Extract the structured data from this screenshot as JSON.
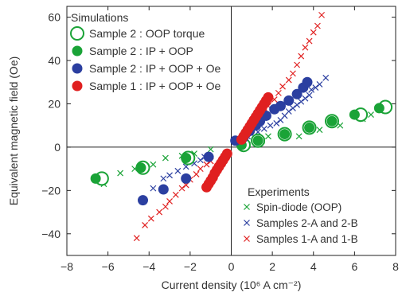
{
  "chart_data": {
    "type": "scatter",
    "title": "",
    "xlabel": "Current density (10⁶ A cm⁻²)",
    "ylabel": "Equivalent magnetic field (Oe)",
    "xlim": [
      -8,
      8
    ],
    "ylim": [
      -50,
      65
    ],
    "x_ticks": [
      -8,
      -6,
      -4,
      -2,
      0,
      2,
      4,
      6,
      8
    ],
    "y_ticks": [
      -40,
      -20,
      0,
      20,
      40,
      60
    ],
    "x_tick_labels": [
      "−8",
      "−6",
      "−4",
      "−2",
      "0",
      "2",
      "4",
      "6",
      "8"
    ],
    "y_tick_labels": [
      "−40",
      "−20",
      "0",
      "20",
      "40",
      "60"
    ],
    "grid": false,
    "zero_lines": true,
    "legend_groups": [
      {
        "title": "Simulations",
        "position": "top-left",
        "series": [
          "sim_oop",
          "sim_ip_oop",
          "sim_ip_oop_oe_s2",
          "sim_ip_oop_oe_s1"
        ]
      },
      {
        "title": "Experiments",
        "position": "bottom-right",
        "series": [
          "exp_spin_diode",
          "exp_2ab",
          "exp_1ab"
        ]
      }
    ],
    "series": [
      {
        "id": "sim_oop",
        "name": "Sample 2 : OOP torque",
        "marker": "open-circle",
        "color": "#1aa337",
        "points": [
          [
            -6.3,
            -14.5
          ],
          [
            -4.3,
            -9.5
          ],
          [
            -2.1,
            -5.0
          ],
          [
            0.6,
            1.0
          ],
          [
            1.3,
            3.0
          ],
          [
            2.6,
            6.0
          ],
          [
            3.8,
            9.0
          ],
          [
            4.9,
            12.0
          ],
          [
            6.3,
            15.0
          ],
          [
            7.5,
            18.5
          ]
        ]
      },
      {
        "id": "sim_ip_oop",
        "name": "Sample 2 : IP + OOP",
        "marker": "filled-circle",
        "color": "#1aa337",
        "points": [
          [
            -6.6,
            -14.5
          ],
          [
            -4.4,
            -9.5
          ],
          [
            -2.2,
            -5.0
          ],
          [
            0.5,
            1.0
          ],
          [
            1.3,
            3.0
          ],
          [
            2.6,
            6.0
          ],
          [
            3.8,
            9.0
          ],
          [
            4.9,
            12.0
          ],
          [
            6.0,
            15.0
          ],
          [
            7.2,
            18.0
          ]
        ]
      },
      {
        "id": "sim_ip_oop_oe_s2",
        "name": "Sample 2 : IP + OOP + Oe",
        "marker": "filled-circle",
        "color": "#2b3fa0",
        "points": [
          [
            -4.3,
            -24.5
          ],
          [
            -3.3,
            -19.5
          ],
          [
            -2.2,
            -14.5
          ],
          [
            -1.1,
            -4.5
          ],
          [
            0.2,
            3.0
          ],
          [
            0.6,
            4.5
          ],
          [
            0.9,
            7.5
          ],
          [
            1.2,
            10.0
          ],
          [
            1.4,
            12.0
          ],
          [
            1.7,
            14.5
          ],
          [
            2.1,
            17.5
          ],
          [
            2.4,
            19.0
          ],
          [
            2.8,
            21.5
          ],
          [
            3.2,
            24.5
          ],
          [
            3.5,
            27.5
          ],
          [
            3.7,
            30.0
          ]
        ]
      },
      {
        "id": "sim_ip_oop_oe_s1",
        "name": "Sample 1 : IP + OOP + Oe",
        "marker": "filled-circle",
        "color": "#e02020",
        "points": [
          [
            -1.2,
            -18.5
          ],
          [
            -1.1,
            -17.0
          ],
          [
            -1.0,
            -15.5
          ],
          [
            -0.9,
            -14.0
          ],
          [
            -0.8,
            -12.0
          ],
          [
            -0.7,
            -10.5
          ],
          [
            -0.6,
            -9.0
          ],
          [
            -0.5,
            -7.5
          ],
          [
            -0.4,
            -6.0
          ],
          [
            -0.3,
            -4.5
          ],
          [
            -0.2,
            -3.0
          ],
          [
            0.5,
            3.5
          ],
          [
            0.6,
            5.0
          ],
          [
            0.7,
            6.5
          ],
          [
            0.8,
            8.0
          ],
          [
            0.9,
            9.5
          ],
          [
            1.0,
            11.0
          ],
          [
            1.1,
            12.5
          ],
          [
            1.2,
            14.0
          ],
          [
            1.3,
            15.5
          ],
          [
            1.4,
            17.0
          ],
          [
            1.5,
            18.5
          ],
          [
            1.6,
            20.0
          ],
          [
            1.7,
            21.5
          ],
          [
            1.8,
            23.0
          ]
        ]
      },
      {
        "id": "exp_spin_diode",
        "name": "Spin-diode  (OOP)",
        "marker": "x",
        "color": "#1aa337",
        "points": [
          [
            -6.2,
            -17.0
          ],
          [
            -5.4,
            -12.0
          ],
          [
            -4.7,
            -10.0
          ],
          [
            -3.8,
            -8.0
          ],
          [
            -3.2,
            -5.0
          ],
          [
            -2.4,
            -4.0
          ],
          [
            -1.8,
            -3.0
          ],
          [
            -1.0,
            -1.0
          ],
          [
            0.8,
            1.0
          ],
          [
            1.5,
            3.0
          ],
          [
            1.8,
            5.0
          ],
          [
            3.3,
            5.0
          ],
          [
            4.3,
            8.0
          ],
          [
            5.3,
            10.0
          ],
          [
            6.4,
            13.0
          ],
          [
            6.8,
            15.0
          ]
        ]
      },
      {
        "id": "exp_2ab",
        "name": "Samples 2-A and 2-B",
        "marker": "x",
        "color": "#2b3fa0",
        "points": [
          [
            -3.8,
            -19.0
          ],
          [
            -3.3,
            -14.5
          ],
          [
            -3.0,
            -13.0
          ],
          [
            -2.6,
            -11.0
          ],
          [
            -2.2,
            -9.0
          ],
          [
            -1.8,
            -7.5
          ],
          [
            -1.5,
            -6.0
          ],
          [
            -1.3,
            -4.5
          ],
          [
            0.3,
            2.5
          ],
          [
            0.6,
            3.5
          ],
          [
            0.8,
            5.0
          ],
          [
            1.0,
            6.0
          ],
          [
            1.3,
            7.0
          ],
          [
            1.6,
            8.5
          ],
          [
            1.9,
            10.0
          ],
          [
            2.2,
            11.0
          ],
          [
            2.4,
            12.5
          ],
          [
            2.6,
            14.5
          ],
          [
            2.8,
            16.5
          ],
          [
            3.0,
            18.0
          ],
          [
            3.2,
            19.5
          ],
          [
            3.4,
            21.0
          ],
          [
            3.6,
            22.5
          ],
          [
            3.8,
            24.0
          ],
          [
            3.9,
            26.5
          ],
          [
            4.1,
            27.5
          ],
          [
            4.3,
            29.0
          ],
          [
            4.6,
            32.0
          ]
        ]
      },
      {
        "id": "exp_1ab",
        "name": "Samples 1-A and 1-B",
        "marker": "x",
        "color": "#e02020",
        "points": [
          [
            -4.6,
            -42.0
          ],
          [
            -4.2,
            -36.0
          ],
          [
            -3.9,
            -33.0
          ],
          [
            -3.5,
            -30.0
          ],
          [
            -3.2,
            -27.5
          ],
          [
            -3.0,
            -25.0
          ],
          [
            -2.7,
            -22.0
          ],
          [
            -2.4,
            -19.0
          ],
          [
            -2.2,
            -17.5
          ],
          [
            -2.0,
            -15.0
          ],
          [
            -1.7,
            -12.5
          ],
          [
            -1.5,
            -10.0
          ],
          [
            -1.2,
            -8.0
          ],
          [
            -1.0,
            -6.5
          ],
          [
            0.9,
            7.0
          ],
          [
            1.1,
            10.0
          ],
          [
            1.4,
            13.0
          ],
          [
            1.6,
            16.0
          ],
          [
            1.8,
            19.0
          ],
          [
            2.1,
            22.0
          ],
          [
            2.3,
            25.0
          ],
          [
            2.5,
            28.0
          ],
          [
            2.8,
            31.0
          ],
          [
            3.0,
            34.0
          ],
          [
            3.2,
            38.0
          ],
          [
            3.4,
            42.0
          ],
          [
            3.6,
            46.0
          ],
          [
            3.8,
            49.0
          ],
          [
            4.0,
            53.0
          ],
          [
            4.2,
            56.0
          ],
          [
            4.4,
            61.0
          ]
        ]
      }
    ]
  }
}
